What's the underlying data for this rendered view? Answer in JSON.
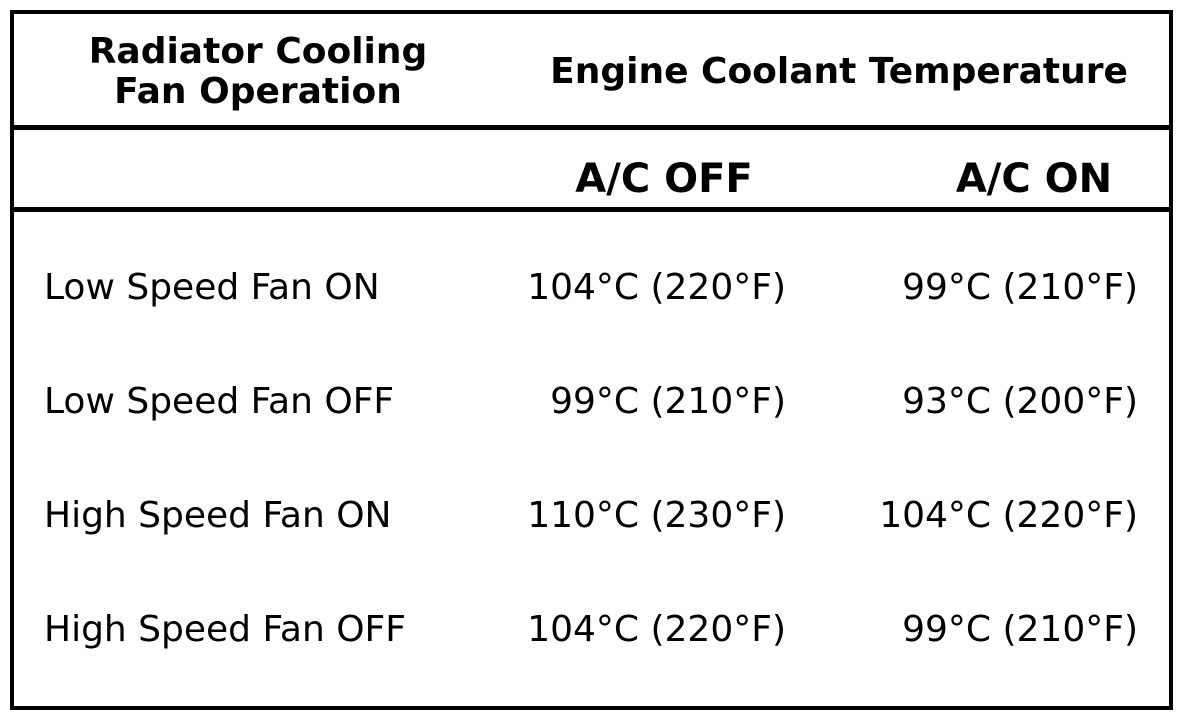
{
  "table": {
    "header": {
      "fan_operation_line1": "Radiator Cooling",
      "fan_operation_line2": "Fan Operation",
      "engine_coolant_temperature": "Engine Coolant Temperature",
      "ac_off": "A/C OFF",
      "ac_on": "A/C ON"
    },
    "rows": [
      {
        "label": "Low Speed Fan ON",
        "ac_off": "104°C (220°F)",
        "ac_on": "99°C (210°F)"
      },
      {
        "label": "Low Speed Fan OFF",
        "ac_off": "99°C (210°F)",
        "ac_on": "93°C (200°F)"
      },
      {
        "label": "High Speed Fan ON",
        "ac_off": "110°C (230°F)",
        "ac_on": "104°C (220°F)"
      },
      {
        "label": "High Speed Fan OFF",
        "ac_off": "104°C (220°F)",
        "ac_on": "99°C (210°F)"
      }
    ]
  }
}
